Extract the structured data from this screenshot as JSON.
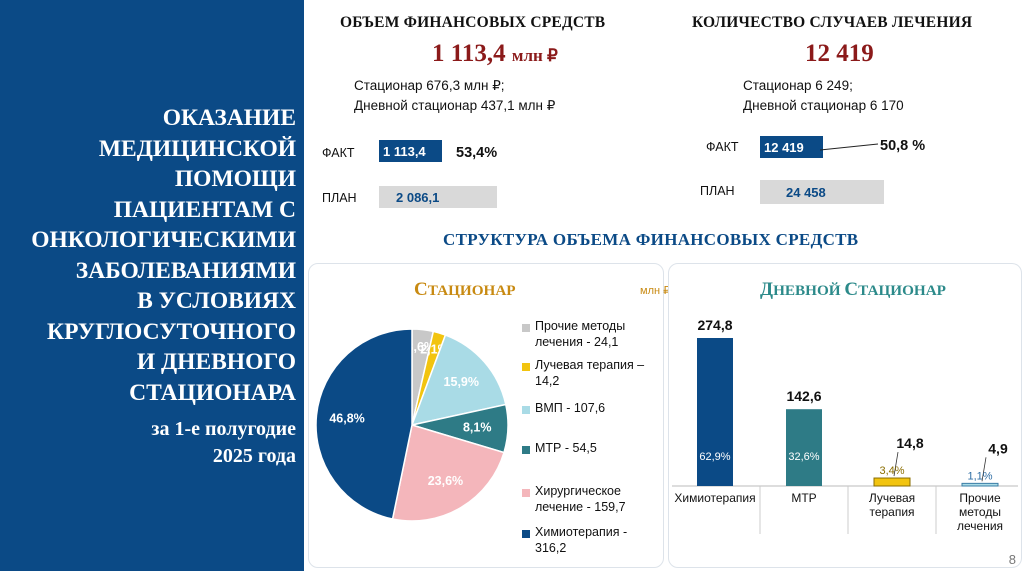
{
  "left_panel": {
    "title_lines": [
      "ОКАЗАНИЕ",
      "МЕДИЦИНСКОЙ",
      "ПОМОЩИ",
      "ПАЦИЕНТАМ С",
      "ОНКОЛОГИЧЕСКИМИ",
      "ЗАБОЛЕВАНИЯМИ",
      "В УСЛОВИЯХ",
      "КРУГЛОСУТОЧНОГО",
      "И ДНЕВНОГО",
      "СТАЦИОНАРА"
    ],
    "subtitle_lines": [
      "за 1-е полугодие",
      "2025 года"
    ]
  },
  "finance": {
    "title": "ОБЪЕМ ФИНАНСОВЫХ СРЕДСТВ",
    "total": "1 113,4",
    "unit": "млн ₽",
    "breakdown_line1": "Стационар 676,3 млн ₽;",
    "breakdown_line2": "Дневной стационар 437,1 млн ₽",
    "fact_label": "ФАКТ",
    "plan_label": "ПЛАН",
    "fact_value_label": "1 113,4",
    "plan_value_label": "2 086,1",
    "fact_value": 1113.4,
    "plan_value": 2086.1,
    "percent": "53,4%"
  },
  "cases": {
    "title": "КОЛИЧЕСТВО СЛУЧАЕВ ЛЕЧЕНИЯ",
    "total": "12 419",
    "breakdown_line1": "Стационар 6 249;",
    "breakdown_line2": "Дневной стационар 6 170",
    "fact_label": "ФАКТ",
    "plan_label": "ПЛАН",
    "fact_value_label": "12 419",
    "plan_value_label": "24 458",
    "fact_value": 12419,
    "plan_value": 24458,
    "percent": "50,8 %"
  },
  "structure_title": "СТРУКТУРА ОБЪЕМА ФИНАНСОВЫХ СРЕДСТВ",
  "inpatient": {
    "title_cap": "С",
    "title_rest": "ТАЦИОНАР",
    "unit": "млн ₽"
  },
  "day_hospital": {
    "title_cap": "Д",
    "title_rest1": "НЕВНОЙ ",
    "title_cap2": "С",
    "title_rest2": "ТАЦИОНАР"
  },
  "page_number": "8",
  "colors": {
    "navy": "#0b4a86",
    "light_blue": "#a9dbe6",
    "teal": "#2e7b86",
    "pink": "#f4b6bb",
    "yellow": "#f2c40f",
    "gray": "#c8c8c8",
    "dark_red": "#8b1a1a",
    "gold_title": "#c88a12",
    "teal_title": "#2c8a8a"
  },
  "chart_data": [
    {
      "type": "pie",
      "title": "Стационар",
      "unit": "млн ₽",
      "slices": [
        {
          "legend_line1": "Прочие методы",
          "legend_line2": "лечения - 24,1",
          "value": 24.1,
          "percent_label": "3,6%",
          "color": "#c8c8c8"
        },
        {
          "legend_line1": "Лучевая терапия –",
          "legend_line2": "14,2",
          "value": 14.2,
          "percent_label": "2,1%",
          "color": "#f2c40f"
        },
        {
          "legend_line1": "ВМП - 107,6",
          "legend_line2": "",
          "value": 107.6,
          "percent_label": "15,9%",
          "color": "#a9dbe6"
        },
        {
          "legend_line1": "МТР - 54,5",
          "legend_line2": "",
          "value": 54.5,
          "percent_label": "8,1%",
          "color": "#2e7b86"
        },
        {
          "legend_line1": "Хирургическое",
          "legend_line2": "лечение - 159,7",
          "value": 159.7,
          "percent_label": "23,6%",
          "color": "#f4b6bb"
        },
        {
          "legend_line1": "Химиотерапия -",
          "legend_line2": "316,2",
          "value": 316.2,
          "percent_label": "46,8%",
          "color": "#0b4a86"
        }
      ]
    },
    {
      "type": "bar",
      "title": "Дневной стационар",
      "categories": [
        "Химиотерапия",
        "МТР",
        "Лучевая терапия",
        "Прочие методы лечения"
      ],
      "category_lines": [
        [
          "Химиотерапия"
        ],
        [
          "МТР"
        ],
        [
          "Лучевая",
          "терапия"
        ],
        [
          "Прочие",
          "методы",
          "лечения"
        ]
      ],
      "values": [
        274.8,
        142.6,
        14.8,
        4.9
      ],
      "value_labels": [
        "274,8",
        "142,6",
        "14,8",
        "4,9"
      ],
      "percent_labels": [
        "62,9%",
        "32,6%",
        "3,4%",
        "1,1%"
      ],
      "colors": [
        "#0b4a86",
        "#2e7b86",
        "#f2c40f",
        "#a9dbe6"
      ]
    }
  ]
}
